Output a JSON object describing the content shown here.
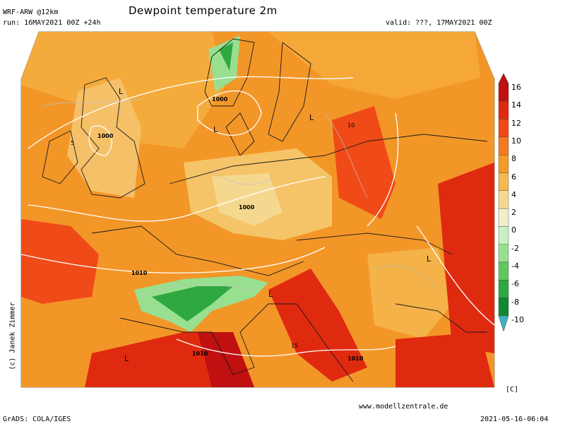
{
  "header": {
    "model": "WRF-ARW @12km",
    "run": "run: 16MAY2021 00Z +24h",
    "title": "Dewpoint temperature 2m",
    "valid": "valid: ???, 17MAY2021 00Z"
  },
  "footer": {
    "grads": "GrADS: COLA/IGES",
    "website": "www.modellzentrale.de",
    "timestamp": "2021-05-16-06:04",
    "copyright": "(c) Janek Zimmer"
  },
  "colorbar": {
    "unit": "[C]",
    "ticks": [
      "16",
      "14",
      "12",
      "10",
      "8",
      "6",
      "4",
      "2",
      "0",
      "-2",
      "-4",
      "-6",
      "-8",
      "-10"
    ],
    "colors": [
      "#c01010",
      "#e02a10",
      "#f04a18",
      "#f47a20",
      "#f59a28",
      "#f5b850",
      "#f5d890",
      "#f2eec8",
      "#c8f0c0",
      "#98e090",
      "#60c860",
      "#30a840",
      "#108830",
      "#40b0c0"
    ]
  },
  "map": {
    "isobar_labels": [
      "1000",
      "1000",
      "1000",
      "1010",
      "1010",
      "1010"
    ],
    "pressure_lows": [
      "L",
      "L",
      "L",
      "L",
      "L",
      "L"
    ],
    "contour_labels": [
      "5",
      "10",
      "15"
    ]
  }
}
